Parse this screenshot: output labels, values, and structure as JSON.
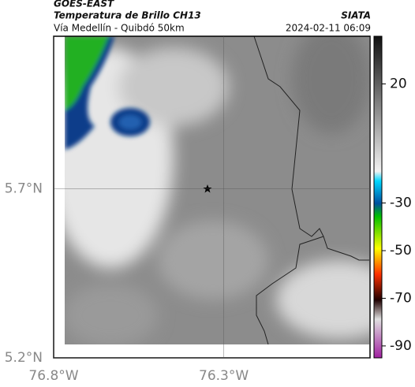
{
  "header": {
    "source": "GOES-EAST",
    "title": "Temperatura de Brillo CH13",
    "subtitle": "Vía Medellín - Quibdó 50km",
    "org": "SIATA",
    "datetime": "2024-02-11 06:09"
  },
  "map": {
    "xlim": [
      -76.8,
      -75.87
    ],
    "ylim": [
      5.2,
      6.15
    ],
    "xticks": [
      {
        "value": -76.8,
        "label": "76.8°W"
      },
      {
        "value": -76.3,
        "label": "76.3°W"
      }
    ],
    "yticks": [
      {
        "value": 5.7,
        "label": "5.7°N"
      },
      {
        "value": 5.2,
        "label": "5.2°N"
      }
    ]
  },
  "colorbar": {
    "lim": [
      -95,
      40
    ],
    "ticks": [
      20,
      -30,
      -50,
      -70,
      -90
    ]
  }
}
